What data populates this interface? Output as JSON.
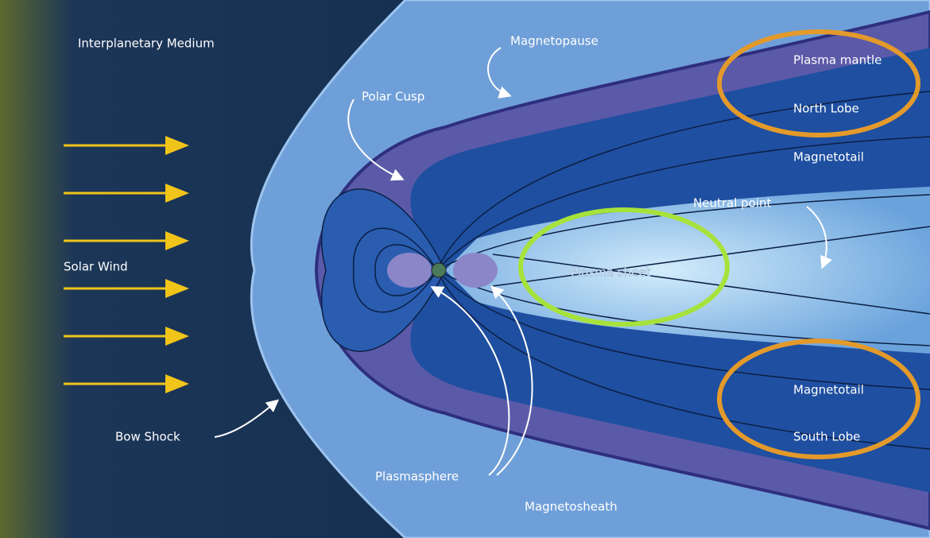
{
  "labels": {
    "interplanetary_medium": "Interplanetary Medium",
    "magnetopause": "Magnetopause",
    "polar_cusp": "Polar Cusp",
    "plasma_mantle": "Plasma mantle",
    "north_lobe": "North Lobe",
    "magnetotail_top": "Magnetotail",
    "neutral_point": "Neutral point",
    "solar_wind": "Solar Wind",
    "plasma_sheet": "Plasma sheet",
    "magnetotail_bottom": "Magnetotail",
    "south_lobe": "South Lobe",
    "bow_shock": "Bow Shock",
    "plasmasphere": "Plasmasphere",
    "magnetosheath": "Magnetosheath"
  }
}
